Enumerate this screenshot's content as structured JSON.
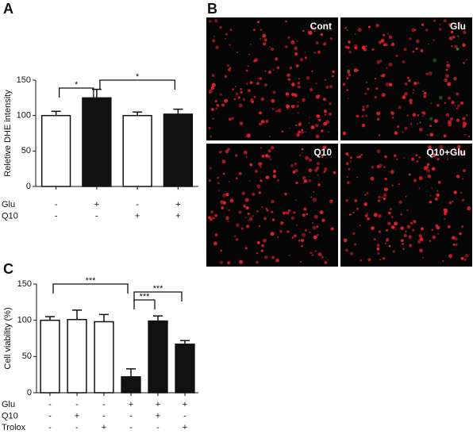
{
  "chart_data": [
    {
      "type": "bar",
      "panel": "A",
      "ylabel": "Reletive DHE intensity",
      "categories": [
        null,
        null,
        null,
        null
      ],
      "values": [
        100,
        125,
        100,
        102
      ],
      "errors": [
        6,
        12,
        5,
        7
      ],
      "colors": [
        "#ffffff",
        "#111111",
        "#ffffff",
        "#111111"
      ],
      "ylim": [
        0,
        150
      ],
      "yticks": [
        0,
        50,
        100,
        150
      ],
      "condition_rows": [
        {
          "name": "Glu",
          "marks": [
            "-",
            "+",
            "-",
            "+"
          ]
        },
        {
          "name": "Q10",
          "marks": [
            "-",
            "-",
            "+",
            "+"
          ]
        }
      ],
      "annotations": [
        {
          "text": "*",
          "from": 0,
          "to": 1
        },
        {
          "text": "*",
          "from": 1,
          "to": 3
        }
      ]
    },
    {
      "type": "bar",
      "panel": "C",
      "ylabel": "Cell viability (%)",
      "categories": [
        null,
        null,
        null,
        null,
        null,
        null
      ],
      "values": [
        100,
        101,
        98,
        22,
        99,
        67
      ],
      "errors": [
        5,
        13,
        10,
        11,
        7,
        5
      ],
      "colors": [
        "#ffffff",
        "#ffffff",
        "#ffffff",
        "#111111",
        "#111111",
        "#111111"
      ],
      "ylim": [
        0,
        150
      ],
      "yticks": [
        0,
        50,
        100,
        150
      ],
      "condition_rows": [
        {
          "name": "Glu",
          "marks": [
            "-",
            "-",
            "-",
            "+",
            "+",
            "+"
          ]
        },
        {
          "name": "Q10",
          "marks": [
            "-",
            "+",
            "-",
            "-",
            "+",
            "-"
          ]
        },
        {
          "name": "Trolox",
          "marks": [
            "-",
            "-",
            "+",
            "-",
            "-",
            "+"
          ]
        }
      ],
      "annotations": [
        {
          "text": "***",
          "from": 0,
          "to": 3
        },
        {
          "text": "***",
          "from": 3,
          "to": 4
        },
        {
          "text": "***",
          "from": 3,
          "to": 5
        }
      ]
    }
  ],
  "images": {
    "panel": "B",
    "labels": [
      "Cont",
      "Glu",
      "Q10",
      "Q10+Glu"
    ]
  }
}
